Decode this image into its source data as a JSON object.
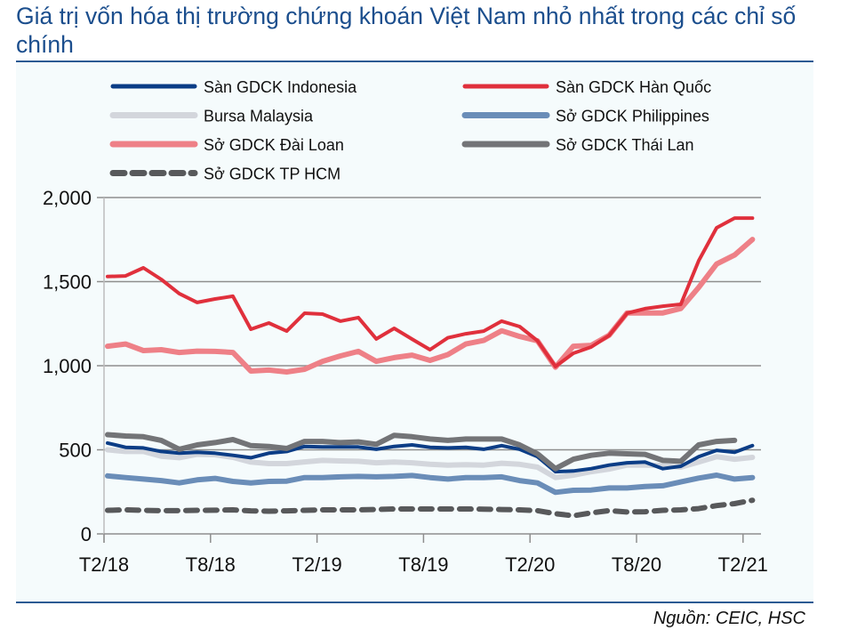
{
  "title": "Giá trị vốn hóa thị trường chứng khoán Việt Nam nhỏ nhất trong các chỉ số chính",
  "source": "Nguồn: CEIC, HSC",
  "chart_data": {
    "type": "line",
    "title": "Giá trị vốn hóa thị trường chứng khoán Việt Nam nhỏ nhất trong các chỉ số chính",
    "xlabel": "",
    "ylabel": "",
    "ylim": [
      0,
      2000
    ],
    "yticks": [
      0,
      500,
      1000,
      1500,
      2000
    ],
    "ytick_labels": [
      "0",
      "500",
      "1,000",
      "1,500",
      "2,000"
    ],
    "xtick_labels": [
      "T2/18",
      "T8/18",
      "T2/19",
      "T8/19",
      "T2/20",
      "T8/20",
      "T2/21"
    ],
    "grid": "horizontal",
    "legend": "top",
    "x": [
      "T2/18",
      "T3/18",
      "T4/18",
      "T5/18",
      "T6/18",
      "T7/18",
      "T8/18",
      "T9/18",
      "T10/18",
      "T11/18",
      "T12/18",
      "T1/19",
      "T2/19",
      "T3/19",
      "T4/19",
      "T5/19",
      "T6/19",
      "T7/19",
      "T8/19",
      "T9/19",
      "T10/19",
      "T11/19",
      "T12/19",
      "T1/20",
      "T2/20",
      "T3/20",
      "T4/20",
      "T5/20",
      "T6/20",
      "T7/20",
      "T8/20",
      "T9/20",
      "T10/20",
      "T11/20",
      "T12/20",
      "T1/21",
      "T2/21"
    ],
    "series": [
      {
        "name": "Sàn GDCK Indonesia",
        "color": "#0B3D86",
        "width": 4,
        "dash": "",
        "values": [
          540,
          515,
          511,
          490,
          480,
          485,
          480,
          467,
          453,
          480,
          490,
          520,
          517,
          517,
          517,
          503,
          520,
          529,
          515,
          511,
          515,
          503,
          525,
          503,
          459,
          370,
          374,
          388,
          409,
          423,
          427,
          388,
          402,
          459,
          497,
          485,
          525
        ]
      },
      {
        "name": "Sàn GDCK Hàn Quốc",
        "color": "#E0303C",
        "width": 4,
        "dash": "",
        "values": [
          1530,
          1534,
          1582,
          1513,
          1429,
          1376,
          1397,
          1413,
          1217,
          1254,
          1206,
          1312,
          1307,
          1265,
          1286,
          1159,
          1222,
          1158,
          1095,
          1166,
          1190,
          1206,
          1265,
          1233,
          1148,
          995,
          1074,
          1111,
          1180,
          1312,
          1339,
          1354,
          1365,
          1624,
          1820,
          1878,
          1878
        ]
      },
      {
        "name": "Bursa Malaysia",
        "color": "#D3D6DC",
        "width": 6,
        "dash": "",
        "values": [
          500,
          490,
          490,
          462,
          453,
          473,
          471,
          455,
          427,
          418,
          418,
          428,
          437,
          434,
          432,
          423,
          427,
          423,
          414,
          409,
          411,
          409,
          420,
          414,
          397,
          335,
          349,
          370,
          385,
          409,
          409,
          406,
          397,
          427,
          459,
          444,
          455
        ]
      },
      {
        "name": "Sở GDCK Philippines",
        "color": "#6A8DB8",
        "width": 6,
        "dash": "",
        "values": [
          345,
          335,
          326,
          317,
          303,
          321,
          330,
          312,
          303,
          312,
          314,
          335,
          335,
          339,
          342,
          339,
          342,
          347,
          335,
          326,
          335,
          335,
          339,
          317,
          303,
          247,
          259,
          261,
          273,
          273,
          282,
          286,
          309,
          332,
          349,
          326,
          335
        ]
      },
      {
        "name": "Sở GDCK Đài Loan",
        "color": "#EE8087",
        "width": 6,
        "dash": "",
        "values": [
          1116,
          1129,
          1090,
          1095,
          1079,
          1087,
          1085,
          1079,
          968,
          974,
          963,
          979,
          1026,
          1058,
          1085,
          1026,
          1048,
          1063,
          1032,
          1066,
          1129,
          1150,
          1208,
          1174,
          1148,
          991,
          1116,
          1121,
          1181,
          1314,
          1314,
          1314,
          1340,
          1465,
          1605,
          1658,
          1751
        ]
      },
      {
        "name": "Sở GDCK Thái Lan",
        "color": "#737477",
        "width": 6,
        "dash": "",
        "values": [
          590,
          582,
          578,
          556,
          503,
          529,
          543,
          561,
          525,
          520,
          508,
          550,
          550,
          543,
          547,
          533,
          586,
          578,
          564,
          556,
          564,
          564,
          564,
          529,
          476,
          388,
          444,
          467,
          480,
          476,
          473,
          437,
          432,
          529,
          550,
          556,
          null
        ]
      },
      {
        "name": "Sở GDCK TP HCM",
        "color": "#58595B",
        "width": 6,
        "dash": "13 9",
        "values": [
          140,
          143,
          140,
          138,
          138,
          140,
          141,
          143,
          137,
          135,
          137,
          140,
          143,
          143,
          143,
          145,
          148,
          148,
          148,
          148,
          148,
          147,
          145,
          143,
          138,
          120,
          108,
          125,
          138,
          130,
          132,
          140,
          143,
          150,
          168,
          180,
          200
        ]
      }
    ]
  }
}
